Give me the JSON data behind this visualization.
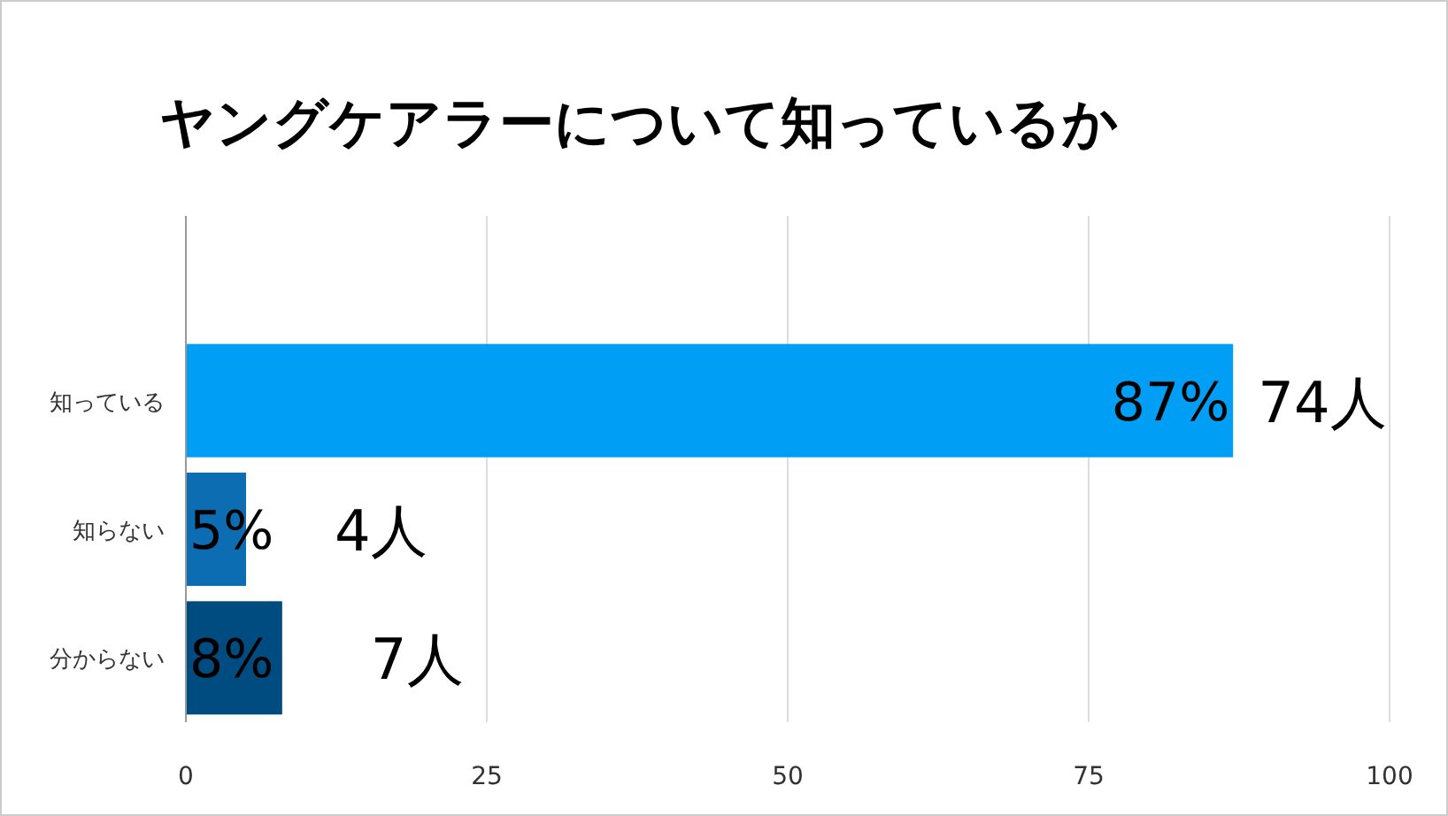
{
  "chart_data": {
    "type": "bar",
    "orientation": "horizontal",
    "title": "ヤングケアラーについて知っているか",
    "categories": [
      "知っている",
      "知らない",
      "分からない"
    ],
    "values": [
      87,
      5,
      8
    ],
    "colors": [
      "#009ef5",
      "#0d6db3",
      "#004b80"
    ],
    "value_labels": [
      "87%",
      "5%",
      "8%"
    ],
    "xlim": [
      0,
      100
    ],
    "xticks": [
      0,
      25,
      50,
      75,
      100
    ],
    "grid": "x",
    "annotations": [
      {
        "text": "74人",
        "x": 87,
        "y": "知っている"
      },
      {
        "text": "4人",
        "x": 5,
        "y": "知らない"
      },
      {
        "text": "7人",
        "x": 8,
        "y": "分からない"
      }
    ]
  }
}
